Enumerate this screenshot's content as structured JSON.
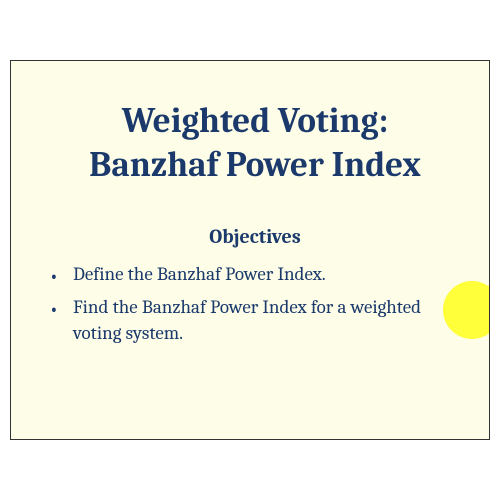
{
  "slide": {
    "background_color": "#fdfde8",
    "border_color": "#333333",
    "text_color": "#1b3a6b",
    "title_line1": "Weighted Voting:",
    "title_line2": "Banzhaf Power Index",
    "title_fontsize": 35,
    "title_fontweight": "bold",
    "subtitle": "Objectives",
    "subtitle_fontsize": 20,
    "bullets": [
      "Define the Banzhaf Power Index.",
      "Find the Banzhaf Power Index for a weighted voting system."
    ],
    "bullet_fontsize": 19,
    "highlight": {
      "color": "#ffff00",
      "shape": "circle",
      "diameter": 58,
      "opacity": 0.75
    }
  }
}
